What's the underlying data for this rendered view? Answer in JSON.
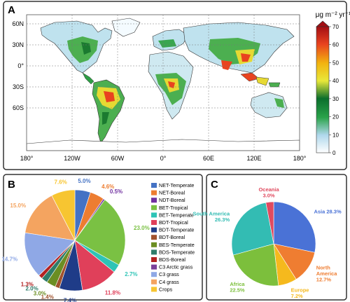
{
  "figure": {
    "panels": [
      {
        "label": "A",
        "type": "map",
        "colorbar": {
          "unit_label": "μg m⁻² yr⁻¹",
          "ticks": [
            "0",
            "10",
            "20",
            "30",
            "40",
            "50",
            "60",
            "70"
          ],
          "range": [
            0,
            70
          ],
          "stops": [
            "#ffffff",
            "#b0d8ec",
            "#2aa34a",
            "#0b6e2c",
            "#e8e83a",
            "#f2b30f",
            "#e9431f",
            "#a30e14"
          ]
        },
        "x_ticks": [
          "180°",
          "120W",
          "60W",
          "0°",
          "60E",
          "120E",
          "180°"
        ],
        "y_ticks": [
          "60N",
          "30N",
          "0°",
          "30S",
          "60S"
        ]
      }
    ]
  },
  "chart_data": [
    {
      "type": "pie",
      "panel_label": "B",
      "slices": [
        {
          "name": "NET-Temperate",
          "value": 5.0,
          "label": "5.0%",
          "color": "#4472c4"
        },
        {
          "name": "NET-Boreal",
          "value": 4.6,
          "label": "4.6%",
          "color": "#ed7d31"
        },
        {
          "name": "NDT-Boreal",
          "value": 0.5,
          "label": "0.5%",
          "color": "#7030a0"
        },
        {
          "name": "BET-Tropical",
          "value": 23.0,
          "label": "23.0%",
          "color": "#7ac143"
        },
        {
          "name": "BET-Temperate",
          "value": 2.7,
          "label": "2.7%",
          "color": "#2ec4b6"
        },
        {
          "name": "BDT-Tropical",
          "value": 11.8,
          "label": "11.8%",
          "color": "#e0405a"
        },
        {
          "name": "BDT-Temperate",
          "value": 7.4,
          "label": "7.4%",
          "color": "#1f3c88"
        },
        {
          "name": "BDT-Boreal",
          "value": 1.4,
          "label": "1.4%",
          "color": "#a0522d"
        },
        {
          "name": "BES-Temperate",
          "value": 3.0,
          "label": "3.0%",
          "color": "#6b8e23"
        },
        {
          "name": "BDS-Temperate",
          "value": 2.0,
          "label": "2.0%",
          "color": "#2e7d6b"
        },
        {
          "name": "BDS-Boreal",
          "value": 1.3,
          "label": "1.3%",
          "color": "#b22222"
        },
        {
          "name": "C3 Arctic grass",
          "value": 0.0,
          "label": "",
          "color": "#7b3f99"
        },
        {
          "name": "C3 grass",
          "value": 14.7,
          "label": "14.7%",
          "color": "#8fa8e6"
        },
        {
          "name": "C4 grass",
          "value": 15.0,
          "label": "15.0%",
          "color": "#f4a460"
        },
        {
          "name": "Crops",
          "value": 7.6,
          "label": "7.6%",
          "color": "#f7c531"
        }
      ]
    },
    {
      "type": "pie",
      "panel_label": "C",
      "slices": [
        {
          "name": "Asia",
          "value": 28.3,
          "label": "Asia 28.3%",
          "color": "#4a72d6"
        },
        {
          "name": "North America",
          "value": 12.7,
          "label": "North\nAmerica\n12.7%",
          "color": "#ef7d31"
        },
        {
          "name": "Europe",
          "value": 7.2,
          "label": "Europe\n7.2%",
          "color": "#f5b91d"
        },
        {
          "name": "Africa",
          "value": 22.5,
          "label": "Africa\n22.5%",
          "color": "#7cbf3c"
        },
        {
          "name": "South America",
          "value": 26.3,
          "label": "South America\n26.3%",
          "color": "#33bcb3"
        },
        {
          "name": "Oceania",
          "value": 3.0,
          "label": "Oceania\n3.0%",
          "color": "#e04a5f"
        }
      ]
    }
  ]
}
